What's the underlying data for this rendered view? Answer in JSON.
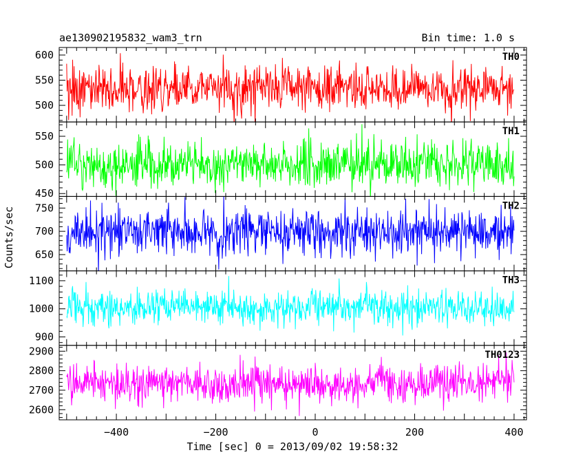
{
  "header": {
    "title": "ae130902195832_wam3_trn",
    "bin_time": "Bin time: 1.0 s"
  },
  "chart_data": {
    "type": "line",
    "title": "ae130902195832_wam3_trn",
    "subtitle": "Bin time: 1.0 s",
    "xlabel": "Time [sec] 0 = 2013/09/02 19:58:32",
    "ylabel": "Counts/sec",
    "xlim": [
      -515,
      425
    ],
    "x_ticks": [
      -400,
      -200,
      0,
      200,
      400
    ],
    "x_tick_labels": [
      "−400",
      "−200",
      "0",
      "200",
      "400"
    ],
    "x_range": [
      -500,
      400
    ],
    "bin_seconds": 1.0,
    "grid": false,
    "panels": [
      {
        "name": "TH0",
        "color": "#ff0000",
        "ylim": [
          467,
          615
        ],
        "y_ticks": [
          500,
          550,
          600
        ],
        "y_tick_labels": [
          "500",
          "550",
          "600"
        ],
        "mean": 535,
        "sigma": 22
      },
      {
        "name": "TH1",
        "color": "#00ff00",
        "ylim": [
          445,
          575
        ],
        "y_ticks": [
          450,
          500,
          550
        ],
        "y_tick_labels": [
          "450",
          "500",
          "550"
        ],
        "mean": 500,
        "sigma": 21
      },
      {
        "name": "TH2",
        "color": "#0000ff",
        "ylim": [
          615,
          775
        ],
        "y_ticks": [
          650,
          700,
          750
        ],
        "y_tick_labels": [
          "650",
          "700",
          "750"
        ],
        "mean": 700,
        "sigma": 25
      },
      {
        "name": "TH3",
        "color": "#00ffff",
        "ylim": [
          870,
          1135
        ],
        "y_ticks": [
          900,
          1000,
          1100
        ],
        "y_tick_labels": [
          "900",
          "1000",
          "1100"
        ],
        "mean": 1005,
        "sigma": 32
      },
      {
        "name": "TH0123",
        "color": "#ff00ff",
        "ylim": [
          2548,
          2930
        ],
        "y_ticks": [
          2600,
          2700,
          2800,
          2900
        ],
        "y_tick_labels": [
          "2600",
          "2700",
          "2800",
          "2900"
        ],
        "mean": 2735,
        "sigma": 52
      }
    ]
  }
}
